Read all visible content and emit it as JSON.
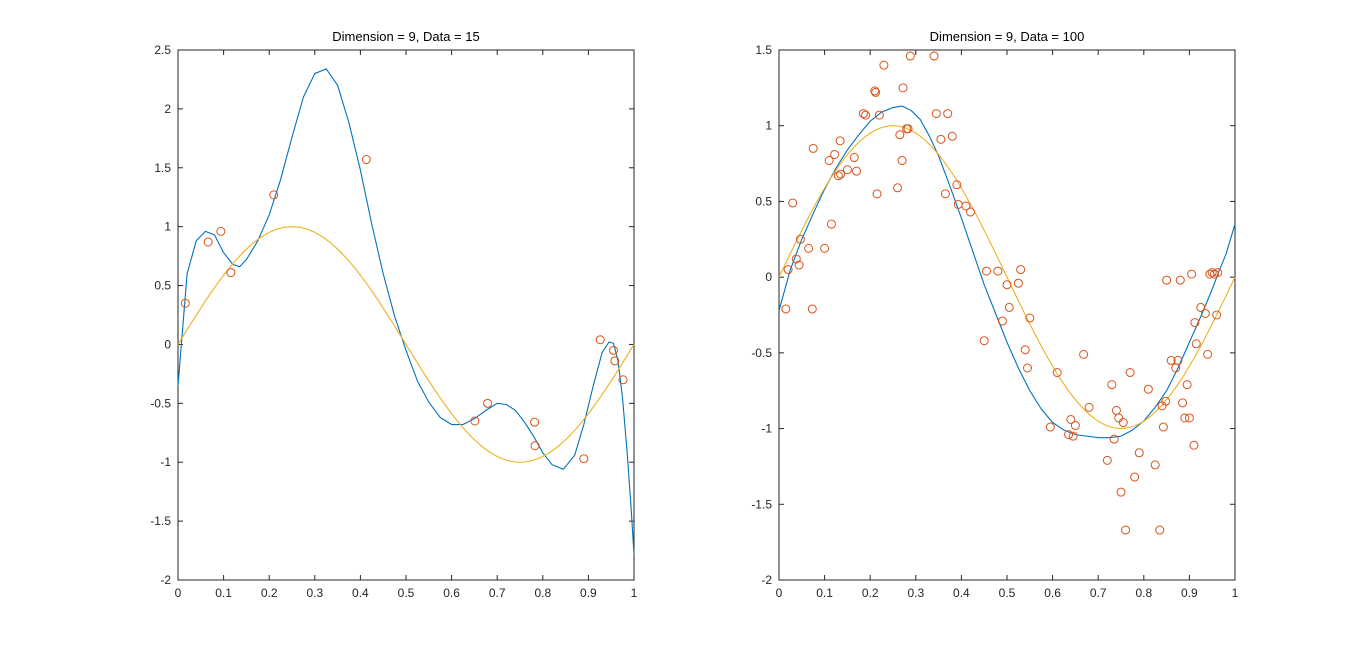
{
  "chart_data": [
    {
      "type": "scatter",
      "title": "Dimension = 9, Data = 15",
      "xlabel": "",
      "ylabel": "",
      "xlim": [
        0,
        1
      ],
      "ylim": [
        -2,
        2.5
      ],
      "xticks": [
        "0",
        "0.1",
        "0.2",
        "0.3",
        "0.4",
        "0.5",
        "0.6",
        "0.7",
        "0.8",
        "0.9",
        "1"
      ],
      "xtick_values": [
        0,
        0.1,
        0.2,
        0.3,
        0.4,
        0.5,
        0.6,
        0.7,
        0.8,
        0.9,
        1
      ],
      "yticks": [
        "-2",
        "-1.5",
        "-1",
        "-0.5",
        "0",
        "0.5",
        "1",
        "1.5",
        "2",
        "2.5"
      ],
      "ytick_values": [
        -2,
        -1.5,
        -1,
        -0.5,
        0,
        0.5,
        1,
        1.5,
        2,
        2.5
      ],
      "grid": false,
      "series": [
        {
          "kind": "markers",
          "color": "#d95319",
          "x": [
            0.016,
            0.066,
            0.094,
            0.116,
            0.21,
            0.413,
            0.651,
            0.679,
            0.782,
            0.783,
            0.89,
            0.926,
            0.955,
            0.958,
            0.976
          ],
          "y": [
            0.35,
            0.87,
            0.96,
            0.61,
            1.27,
            1.57,
            -0.65,
            -0.5,
            -0.66,
            -0.86,
            -0.97,
            0.04,
            -0.05,
            -0.14,
            -0.3
          ]
        },
        {
          "kind": "line",
          "color": "#0072bd",
          "x": [
            0,
            0.02,
            0.04,
            0.06,
            0.08,
            0.1,
            0.12,
            0.135,
            0.15,
            0.175,
            0.2,
            0.225,
            0.25,
            0.275,
            0.3,
            0.325,
            0.35,
            0.375,
            0.4,
            0.425,
            0.45,
            0.475,
            0.5,
            0.525,
            0.55,
            0.575,
            0.6,
            0.625,
            0.65,
            0.675,
            0.7,
            0.72,
            0.74,
            0.76,
            0.78,
            0.8,
            0.82,
            0.845,
            0.87,
            0.89,
            0.91,
            0.93,
            0.945,
            0.955,
            0.965,
            0.975,
            0.985,
            0.993,
            1.0
          ],
          "y": [
            -0.35,
            0.6,
            0.88,
            0.96,
            0.93,
            0.78,
            0.68,
            0.66,
            0.72,
            0.88,
            1.1,
            1.4,
            1.76,
            2.1,
            2.3,
            2.34,
            2.2,
            1.88,
            1.48,
            1.02,
            0.6,
            0.24,
            -0.05,
            -0.31,
            -0.49,
            -0.62,
            -0.68,
            -0.68,
            -0.63,
            -0.56,
            -0.5,
            -0.51,
            -0.56,
            -0.66,
            -0.78,
            -0.92,
            -1.02,
            -1.06,
            -0.94,
            -0.68,
            -0.36,
            -0.07,
            0.02,
            0.01,
            -0.14,
            -0.46,
            -0.92,
            -1.35,
            -1.78
          ]
        },
        {
          "kind": "line",
          "color": "#edb120",
          "function": "sin(2*pi*x)",
          "samples": 101
        }
      ]
    },
    {
      "type": "scatter",
      "title": "Dimension = 9, Data = 100",
      "xlabel": "",
      "ylabel": "",
      "xlim": [
        0,
        1
      ],
      "ylim": [
        -2,
        1.5
      ],
      "xticks": [
        "0",
        "0.1",
        "0.2",
        "0.3",
        "0.4",
        "0.5",
        "0.6",
        "0.7",
        "0.8",
        "0.9",
        "1"
      ],
      "xtick_values": [
        0,
        0.1,
        0.2,
        0.3,
        0.4,
        0.5,
        0.6,
        0.7,
        0.8,
        0.9,
        1
      ],
      "yticks": [
        "-2",
        "-1.5",
        "-1",
        "-0.5",
        "0",
        "0.5",
        "1",
        "1.5"
      ],
      "ytick_values": [
        -2,
        -1.5,
        -1,
        -0.5,
        0,
        0.5,
        1,
        1.5
      ],
      "grid": false,
      "series": [
        {
          "kind": "markers",
          "color": "#d95319",
          "x": [
            0.015,
            0.02,
            0.03,
            0.038,
            0.044,
            0.047,
            0.065,
            0.073,
            0.075,
            0.1,
            0.11,
            0.115,
            0.122,
            0.13,
            0.134,
            0.135,
            0.15,
            0.165,
            0.17,
            0.185,
            0.19,
            0.21,
            0.212,
            0.215,
            0.22,
            0.23,
            0.26,
            0.265,
            0.27,
            0.272,
            0.28,
            0.283,
            0.288,
            0.34,
            0.345,
            0.355,
            0.365,
            0.37,
            0.38,
            0.39,
            0.393,
            0.41,
            0.42,
            0.45,
            0.455,
            0.48,
            0.49,
            0.5,
            0.505,
            0.525,
            0.53,
            0.54,
            0.545,
            0.55,
            0.595,
            0.61,
            0.635,
            0.64,
            0.645,
            0.65,
            0.668,
            0.68,
            0.72,
            0.73,
            0.735,
            0.74,
            0.745,
            0.75,
            0.755,
            0.76,
            0.77,
            0.78,
            0.79,
            0.81,
            0.825,
            0.835,
            0.84,
            0.843,
            0.848,
            0.85,
            0.86,
            0.87,
            0.875,
            0.88,
            0.885,
            0.89,
            0.895,
            0.9,
            0.905,
            0.91,
            0.912,
            0.915,
            0.925,
            0.935,
            0.94,
            0.945,
            0.95,
            0.955,
            0.96,
            0.962
          ],
          "y": [
            -0.21,
            0.05,
            0.49,
            0.12,
            0.08,
            0.25,
            0.19,
            -0.21,
            0.85,
            0.19,
            0.77,
            0.35,
            0.81,
            0.67,
            0.9,
            0.68,
            0.71,
            0.79,
            0.7,
            1.08,
            1.07,
            1.23,
            1.22,
            0.55,
            1.07,
            1.4,
            0.59,
            0.94,
            0.77,
            1.25,
            0.98,
            0.98,
            1.46,
            1.46,
            1.08,
            0.91,
            0.55,
            1.08,
            0.93,
            0.61,
            0.48,
            0.47,
            0.43,
            -0.42,
            0.04,
            0.04,
            -0.29,
            -0.05,
            -0.2,
            -0.04,
            0.05,
            -0.48,
            -0.6,
            -0.27,
            -0.99,
            -0.63,
            -1.04,
            -0.94,
            -1.05,
            -0.98,
            -0.51,
            -0.86,
            -1.21,
            -0.71,
            -1.07,
            -0.88,
            -0.93,
            -1.42,
            -0.96,
            -1.67,
            -0.63,
            -1.32,
            -1.16,
            -0.74,
            -1.24,
            -1.67,
            -0.85,
            -0.99,
            -0.82,
            -0.02,
            -0.55,
            -0.6,
            -0.55,
            -0.02,
            -0.83,
            -0.93,
            -0.71,
            -0.93,
            0.02,
            -1.11,
            -0.3,
            -0.44,
            -0.2,
            -0.24,
            -0.51,
            0.02,
            0.03,
            0.02,
            -0.25,
            0.03
          ],
          "x_note_omitted": ""
        },
        {
          "kind": "line",
          "color": "#0072bd",
          "x": [
            0,
            0.025,
            0.05,
            0.075,
            0.1,
            0.125,
            0.15,
            0.175,
            0.2,
            0.225,
            0.25,
            0.27,
            0.29,
            0.31,
            0.33,
            0.35,
            0.375,
            0.4,
            0.425,
            0.45,
            0.475,
            0.5,
            0.525,
            0.55,
            0.575,
            0.6,
            0.625,
            0.65,
            0.675,
            0.7,
            0.725,
            0.75,
            0.775,
            0.8,
            0.825,
            0.85,
            0.875,
            0.9,
            0.925,
            0.95,
            0.965,
            0.98,
            0.99,
            1.0
          ],
          "y": [
            -0.22,
            0.05,
            0.25,
            0.42,
            0.58,
            0.72,
            0.84,
            0.94,
            1.03,
            1.09,
            1.12,
            1.13,
            1.1,
            1.04,
            0.93,
            0.8,
            0.6,
            0.39,
            0.17,
            -0.05,
            -0.24,
            -0.43,
            -0.6,
            -0.75,
            -0.87,
            -0.96,
            -1.01,
            -1.04,
            -1.05,
            -1.06,
            -1.06,
            -1.05,
            -1.01,
            -0.95,
            -0.86,
            -0.75,
            -0.6,
            -0.43,
            -0.26,
            -0.08,
            0.04,
            0.15,
            0.25,
            0.35
          ]
        },
        {
          "kind": "line",
          "color": "#edb120",
          "function": "sin(2*pi*x)",
          "samples": 101
        }
      ]
    }
  ]
}
